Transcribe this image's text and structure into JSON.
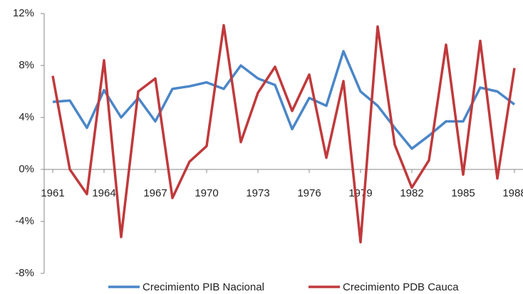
{
  "chart_data": {
    "type": "line",
    "x": [
      1961,
      1962,
      1963,
      1964,
      1965,
      1966,
      1967,
      1968,
      1969,
      1970,
      1971,
      1972,
      1973,
      1974,
      1975,
      1976,
      1977,
      1978,
      1979,
      1980,
      1981,
      1982,
      1983,
      1984,
      1985,
      1986,
      1987,
      1988
    ],
    "series": [
      {
        "name": "Crecimiento PIB Nacional",
        "color": "#4a86c8",
        "values": [
          5.2,
          5.3,
          3.2,
          6.1,
          4.0,
          5.5,
          3.7,
          6.2,
          6.4,
          6.7,
          6.2,
          8.0,
          7.0,
          6.5,
          3.1,
          5.5,
          4.9,
          9.1,
          6.0,
          4.9,
          3.2,
          1.6,
          2.6,
          3.7,
          3.7,
          6.3,
          6.0,
          5.0
        ]
      },
      {
        "name": "Crecimiento PDB Cauca",
        "color": "#c0393b",
        "values": [
          7.2,
          0.0,
          -1.9,
          8.4,
          -5.2,
          6.0,
          7.0,
          -2.2,
          0.6,
          1.8,
          11.1,
          2.1,
          5.9,
          7.9,
          4.5,
          7.3,
          0.9,
          6.8,
          -5.6,
          11.0,
          1.9,
          -1.4,
          0.7,
          9.6,
          -0.4,
          9.9,
          -0.7,
          7.8
        ]
      }
    ],
    "xlim": [
      1960.5,
      1988.5
    ],
    "xticks": [
      1961,
      1964,
      1967,
      1970,
      1973,
      1976,
      1979,
      1982,
      1985,
      1988
    ],
    "ylim": [
      -8,
      12
    ],
    "yticks": [
      {
        "value": -8,
        "label": "-8%"
      },
      {
        "value": -4,
        "label": "-4%"
      },
      {
        "value": 0,
        "label": "0%"
      },
      {
        "value": 4,
        "label": "4%"
      },
      {
        "value": 8,
        "label": "8%"
      },
      {
        "value": 12,
        "label": "12%"
      }
    ],
    "legend": "bottom"
  }
}
